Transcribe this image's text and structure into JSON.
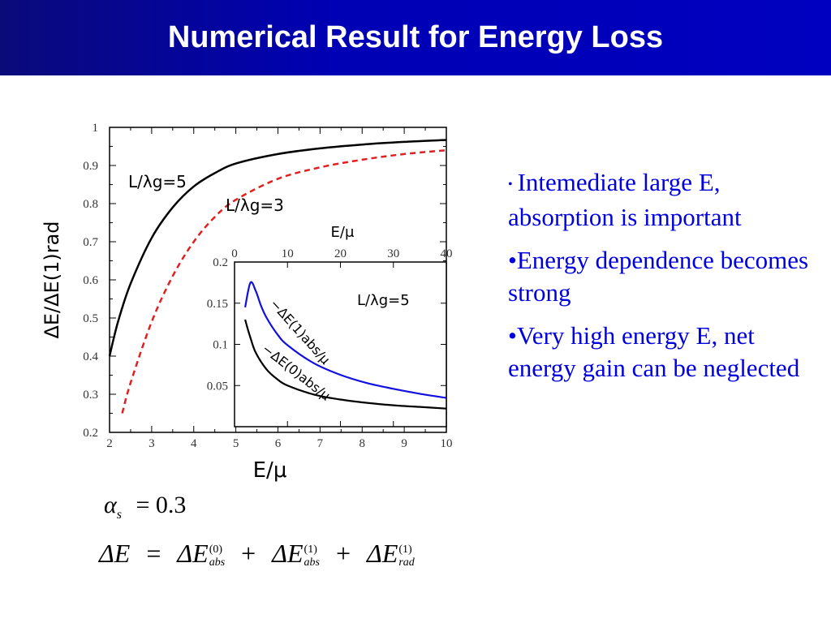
{
  "slide": {
    "title": "Numerical Result for Energy Loss"
  },
  "bullets": [
    {
      "marker": "•",
      "text": "Intemediate large E, absorption is important"
    },
    {
      "marker": "•",
      "text": "Energy dependence becomes strong"
    },
    {
      "marker": "•",
      "text": "Very high energy E, net energy gain can be neglected"
    }
  ],
  "formulas": {
    "alpha_symbol": "α",
    "alpha_sub": "s",
    "alpha_equals": "= 0.3",
    "delta_E": "ΔE",
    "equals": "=",
    "plus": "+",
    "term1_sup": "(0)",
    "term1_sub": "abs",
    "term2_sup": "(1)",
    "term2_sub": "abs",
    "term3_sup": "(1)",
    "term3_sub": "rad"
  },
  "colors": {
    "title_bar": "#0000b4",
    "bullet_text": "#0000e0",
    "series_black": "#000000",
    "series_red_dashed": "#e02020",
    "series_blue": "#1010e0"
  },
  "chart_data": [
    {
      "type": "line",
      "panel": "main",
      "xlabel": "E/μ",
      "ylabel": "ΔE/ΔE(1)rad",
      "xlim": [
        2,
        10
      ],
      "ylim": [
        0.2,
        1
      ],
      "xticks": [
        2,
        3,
        4,
        5,
        6,
        7,
        8,
        9,
        10
      ],
      "yticks": [
        0.2,
        0.3,
        0.4,
        0.5,
        0.6,
        0.7,
        0.8,
        0.9,
        1
      ],
      "ytick_labels": [
        "0.2",
        "0.3",
        "0.4",
        "0.5",
        "0.6",
        "0.7",
        "0.8",
        "0.9",
        "1"
      ],
      "series": [
        {
          "name": "L/λg=5",
          "style": "solid",
          "color": "#000000",
          "x": [
            2.0,
            2.2,
            2.5,
            3.0,
            3.5,
            4.0,
            4.5,
            5.0,
            6.0,
            7.0,
            8.0,
            9.0,
            10.0
          ],
          "y": [
            0.4,
            0.49,
            0.59,
            0.71,
            0.79,
            0.845,
            0.88,
            0.905,
            0.93,
            0.945,
            0.955,
            0.962,
            0.967
          ]
        },
        {
          "name": "L/λg=3",
          "style": "dashed",
          "color": "#e02020",
          "x": [
            2.3,
            2.5,
            3.0,
            3.5,
            4.0,
            4.5,
            5.0,
            6.0,
            7.0,
            8.0,
            9.0,
            10.0
          ],
          "y": [
            0.25,
            0.33,
            0.49,
            0.61,
            0.7,
            0.765,
            0.81,
            0.865,
            0.895,
            0.915,
            0.93,
            0.94
          ]
        }
      ],
      "annotations": [
        {
          "text": "L/λg=5"
        },
        {
          "text": "L/λg=3"
        }
      ]
    },
    {
      "type": "line",
      "panel": "inset",
      "xlabel": "E/μ",
      "xlim": [
        0,
        40
      ],
      "ylim": [
        0,
        0.2
      ],
      "xticks": [
        0,
        10,
        20,
        30,
        40
      ],
      "yticks": [
        0.05,
        0.1,
        0.15,
        0.2
      ],
      "ytick_labels": [
        "0.05",
        "0.1",
        "0.15",
        "0.2"
      ],
      "series": [
        {
          "name": "−ΔE(1)abs/μ",
          "color": "#1010e0",
          "x": [
            2,
            3,
            4,
            5,
            6,
            8,
            10,
            15,
            20,
            25,
            30,
            35,
            40
          ],
          "y": [
            0.145,
            0.175,
            0.165,
            0.147,
            0.133,
            0.113,
            0.099,
            0.077,
            0.063,
            0.053,
            0.046,
            0.04,
            0.035
          ]
        },
        {
          "name": "−ΔE(0)abs/μ",
          "color": "#000000",
          "x": [
            2,
            3,
            4,
            6,
            8,
            10,
            15,
            20,
            25,
            30,
            35,
            40
          ],
          "y": [
            0.13,
            0.108,
            0.09,
            0.07,
            0.058,
            0.05,
            0.039,
            0.033,
            0.029,
            0.026,
            0.024,
            0.022
          ]
        }
      ],
      "annotations": [
        {
          "text": "L/λg=5"
        }
      ]
    }
  ]
}
